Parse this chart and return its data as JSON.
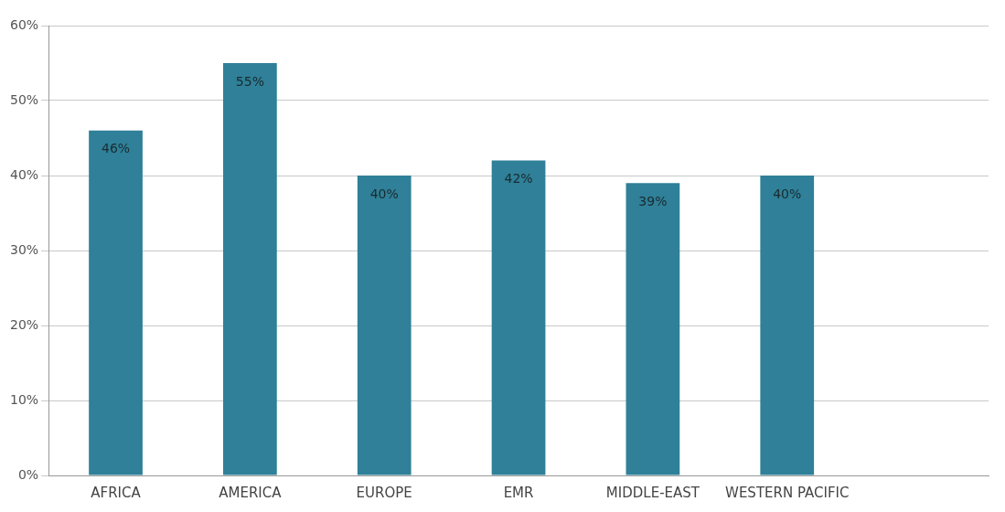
{
  "chart_data": {
    "type": "bar",
    "categories": [
      "AFRICA",
      "AMERICA",
      "EUROPE",
      "EMR",
      "MIDDLE-EAST",
      "WESTERN PACIFIC",
      null
    ],
    "values": [
      46,
      55,
      40,
      42,
      39,
      40,
      null
    ],
    "color": "#2f8098",
    "ylim": [
      0,
      60
    ],
    "yticks": [
      {
        "value": 0,
        "label": "0%"
      },
      {
        "value": 10,
        "label": "10%"
      },
      {
        "value": 20,
        "label": "20%"
      },
      {
        "value": 30,
        "label": "30%"
      },
      {
        "value": 40,
        "label": "40%"
      },
      {
        "value": 50,
        "label": "50%"
      },
      {
        "value": 60,
        "label": "60%"
      }
    ],
    "grid": "y",
    "value_labels": [
      "46%",
      "55%",
      "40%",
      "42%",
      "39%",
      "40%",
      null
    ],
    "legend": false
  }
}
